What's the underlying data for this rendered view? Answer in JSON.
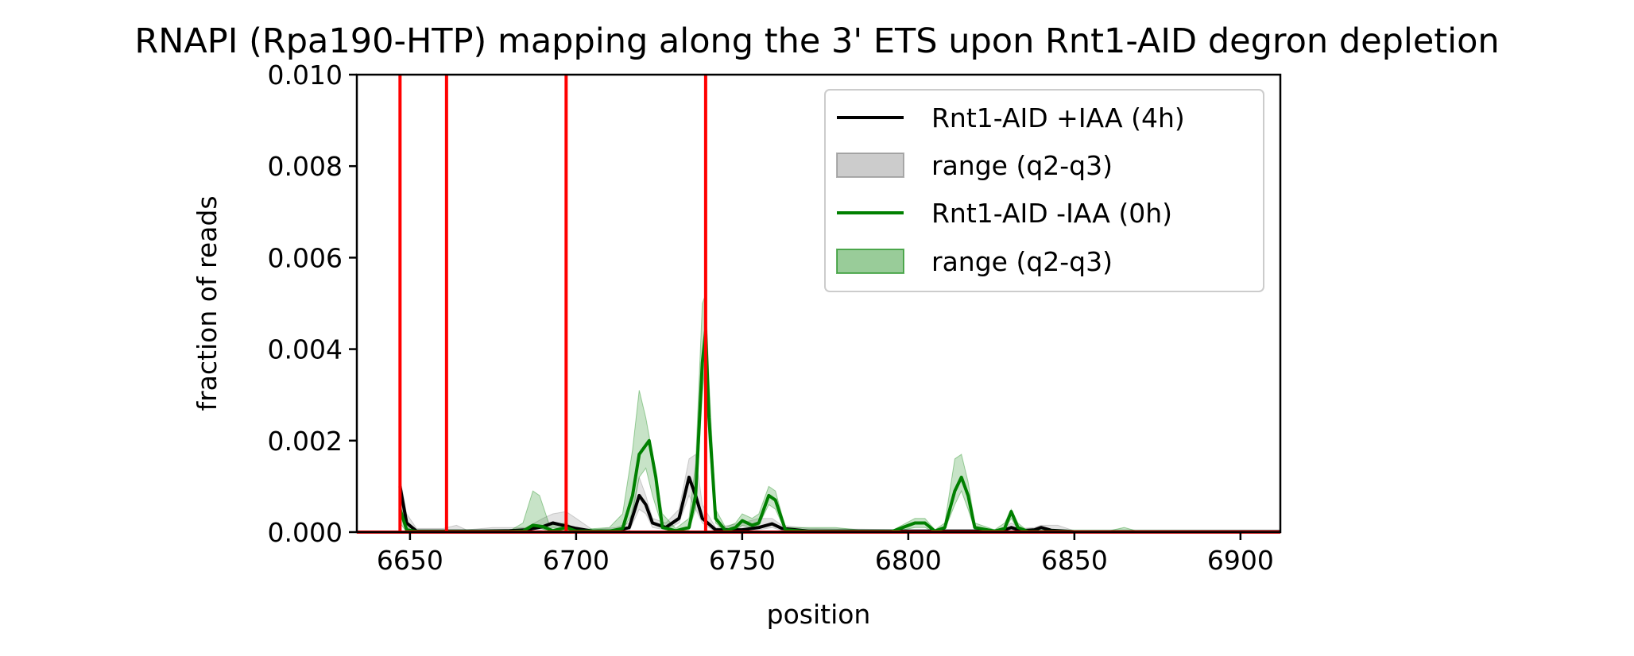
{
  "chart_data": {
    "type": "line",
    "title": "RNAPI (Rpa190-HTP) mapping along the 3' ETS upon Rnt1-AID degron depletion",
    "xlabel": "position",
    "ylabel": "fraction of reads",
    "xlim": [
      6634,
      6912
    ],
    "ylim": [
      0,
      0.01
    ],
    "x_ticks": [
      6650,
      6700,
      6750,
      6800,
      6850,
      6900
    ],
    "y_ticks": [
      0.0,
      0.002,
      0.004,
      0.006,
      0.008,
      0.01
    ],
    "x_tick_labels": [
      "6650",
      "6700",
      "6750",
      "6800",
      "6850",
      "6900"
    ],
    "y_tick_labels": [
      "0.000",
      "0.002",
      "0.004",
      "0.006",
      "0.008",
      "0.010"
    ],
    "grid": false,
    "legend_position": "top-right",
    "vertical_lines": {
      "color": "#ff0000",
      "x": [
        6647,
        6661,
        6697,
        6739
      ]
    },
    "horizontal_line": {
      "color": "#ff0000",
      "y": 0
    },
    "series": [
      {
        "name": "Rnt1-AID +IAA (4h)",
        "color": "#000000",
        "band_name": "range (q2-q3)",
        "band_color": "#808080",
        "points": [
          [
            6647,
            0.001
          ],
          [
            6649,
            0.0002
          ],
          [
            6652,
            2e-05
          ],
          [
            6670,
            2e-05
          ],
          [
            6680,
            3e-05
          ],
          [
            6685,
            5e-05
          ],
          [
            6690,
            0.00012
          ],
          [
            6693,
            0.0002
          ],
          [
            6696,
            0.00015
          ],
          [
            6700,
            8e-05
          ],
          [
            6705,
            2e-05
          ],
          [
            6712,
            2e-05
          ],
          [
            6716,
            0.0001
          ],
          [
            6719,
            0.0008
          ],
          [
            6721,
            0.0006
          ],
          [
            6723,
            0.0002
          ],
          [
            6727,
            0.0001
          ],
          [
            6731,
            0.0003
          ],
          [
            6734,
            0.0012
          ],
          [
            6736,
            0.0008
          ],
          [
            6738,
            0.0003
          ],
          [
            6742,
            5e-05
          ],
          [
            6750,
            5e-05
          ],
          [
            6755,
            0.0001
          ],
          [
            6759,
            0.00018
          ],
          [
            6762,
            8e-05
          ],
          [
            6770,
            2e-05
          ],
          [
            6800,
            2e-05
          ],
          [
            6810,
            2e-05
          ],
          [
            6820,
            2e-05
          ],
          [
            6828,
            2e-05
          ],
          [
            6831,
            0.0001
          ],
          [
            6834,
            3e-05
          ],
          [
            6838,
            5e-05
          ],
          [
            6840,
            0.0001
          ],
          [
            6843,
            4e-05
          ],
          [
            6850,
            1e-05
          ],
          [
            6912,
            1e-05
          ]
        ],
        "band": [
          [
            6647,
            0.0004,
            0.0012
          ],
          [
            6649,
            0.0001,
            0.0004
          ],
          [
            6652,
            0,
            8e-05
          ],
          [
            6660,
            0,
            8e-05
          ],
          [
            6664,
            0,
            0.00015
          ],
          [
            6667,
            0,
            5e-05
          ],
          [
            6675,
            0,
            0.0001
          ],
          [
            6685,
            0,
            0.0001
          ],
          [
            6690,
            5e-05,
            0.0003
          ],
          [
            6693,
            0.0001,
            0.0004
          ],
          [
            6697,
            5e-05,
            0.00045
          ],
          [
            6700,
            5e-05,
            0.0003
          ],
          [
            6705,
            0,
            5e-05
          ],
          [
            6712,
            0,
            0.0001
          ],
          [
            6716,
            2e-05,
            0.0002
          ],
          [
            6719,
            0.0005,
            0.0012
          ],
          [
            6721,
            0.0004,
            0.0008
          ],
          [
            6723,
            0.0001,
            0.0003
          ],
          [
            6727,
            5e-05,
            0.0002
          ],
          [
            6731,
            0.0002,
            0.0005
          ],
          [
            6734,
            0.0008,
            0.0016
          ],
          [
            6736,
            0.0005,
            0.0017
          ],
          [
            6738,
            0.0002,
            0.0006
          ],
          [
            6742,
            0,
            0.0001
          ],
          [
            6750,
            0,
            0.0002
          ],
          [
            6755,
            5e-05,
            0.0003
          ],
          [
            6759,
            0.0001,
            0.0003
          ],
          [
            6762,
            3e-05,
            0.00015
          ],
          [
            6770,
            0,
            8e-05
          ],
          [
            6800,
            0,
            5e-05
          ],
          [
            6815,
            0,
            5e-05
          ],
          [
            6828,
            0,
            5e-05
          ],
          [
            6831,
            5e-05,
            0.0002
          ],
          [
            6834,
            0,
            8e-05
          ],
          [
            6838,
            2e-05,
            0.0001
          ],
          [
            6840,
            5e-05,
            0.00015
          ],
          [
            6845,
            0,
            0.00015
          ],
          [
            6850,
            0,
            3e-05
          ],
          [
            6912,
            0,
            1e-05
          ]
        ]
      },
      {
        "name": "Rnt1-AID -IAA (0h)",
        "color": "#008000",
        "band_name": "range (q2-q3)",
        "band_color": "#008000",
        "points": [
          [
            6647,
            0.0005
          ],
          [
            6649,
            5e-05
          ],
          [
            6652,
            1e-05
          ],
          [
            6680,
            1e-05
          ],
          [
            6684,
            2e-05
          ],
          [
            6687,
            0.00015
          ],
          [
            6690,
            0.00012
          ],
          [
            6693,
            3e-05
          ],
          [
            6697,
            0.0001
          ],
          [
            6700,
            2e-05
          ],
          [
            6710,
            2e-05
          ],
          [
            6714,
            8e-05
          ],
          [
            6717,
            0.0008
          ],
          [
            6719,
            0.0017
          ],
          [
            6722,
            0.002
          ],
          [
            6724,
            0.0012
          ],
          [
            6726,
            0.0001
          ],
          [
            6730,
            3e-05
          ],
          [
            6734,
            0.0001
          ],
          [
            6736,
            0.0008
          ],
          [
            6738,
            0.0037
          ],
          [
            6739,
            0.0044
          ],
          [
            6740,
            0.0025
          ],
          [
            6742,
            0.0003
          ],
          [
            6745,
            3e-05
          ],
          [
            6748,
            0.0001
          ],
          [
            6750,
            0.00025
          ],
          [
            6753,
            0.00015
          ],
          [
            6755,
            0.0002
          ],
          [
            6758,
            0.0008
          ],
          [
            6760,
            0.0007
          ],
          [
            6763,
            5e-05
          ],
          [
            6770,
            1e-05
          ],
          [
            6795,
            1e-05
          ],
          [
            6802,
            0.0002
          ],
          [
            6805,
            0.0002
          ],
          [
            6808,
            2e-05
          ],
          [
            6811,
            0.0001
          ],
          [
            6814,
            0.0009
          ],
          [
            6816,
            0.0012
          ],
          [
            6818,
            0.0008
          ],
          [
            6820,
            0.0001
          ],
          [
            6826,
            2e-05
          ],
          [
            6829,
            8e-05
          ],
          [
            6831,
            0.00045
          ],
          [
            6833,
            0.0001
          ],
          [
            6836,
            1e-05
          ],
          [
            6912,
            0
          ]
        ],
        "band": [
          [
            6647,
            0.0002,
            0.0008
          ],
          [
            6649,
            0,
            0.0002
          ],
          [
            6652,
            0,
            3e-05
          ],
          [
            6680,
            0,
            3e-05
          ],
          [
            6684,
            0,
            0.0002
          ],
          [
            6687,
            0.0001,
            0.0009
          ],
          [
            6689,
            0.0001,
            0.0008
          ],
          [
            6692,
            0,
            0.00015
          ],
          [
            6697,
            5e-05,
            0.0002
          ],
          [
            6700,
            0,
            5e-05
          ],
          [
            6710,
            0,
            0.0001
          ],
          [
            6714,
            5e-05,
            0.0004
          ],
          [
            6717,
            0.0004,
            0.0018
          ],
          [
            6719,
            0.0012,
            0.0031
          ],
          [
            6721,
            0.0014,
            0.0025
          ],
          [
            6723,
            0.0008,
            0.0017
          ],
          [
            6726,
            0.0001,
            0.0004
          ],
          [
            6730,
            0,
            8e-05
          ],
          [
            6734,
            5e-05,
            0.0003
          ],
          [
            6736,
            0.0005,
            0.0015
          ],
          [
            6738,
            0.003,
            0.005
          ],
          [
            6739,
            0.0038,
            0.0052
          ],
          [
            6740,
            0.002,
            0.0033
          ],
          [
            6742,
            0.0002,
            0.0005
          ],
          [
            6745,
            0,
            0.0001
          ],
          [
            6748,
            5e-05,
            0.0002
          ],
          [
            6750,
            0.00015,
            0.0004
          ],
          [
            6753,
            0.0001,
            0.0003
          ],
          [
            6755,
            0.00015,
            0.0004
          ],
          [
            6758,
            0.0006,
            0.001
          ],
          [
            6760,
            0.0005,
            0.0009
          ],
          [
            6763,
            2e-05,
            0.0001
          ],
          [
            6770,
            0,
            0.0001
          ],
          [
            6778,
            0,
            0.0001
          ],
          [
            6785,
            0,
            5e-05
          ],
          [
            6795,
            0,
            3e-05
          ],
          [
            6802,
            0.0001,
            0.0003
          ],
          [
            6805,
            0.0001,
            0.0003
          ],
          [
            6808,
            0,
            5e-05
          ],
          [
            6811,
            5e-05,
            0.0002
          ],
          [
            6814,
            0.0006,
            0.0016
          ],
          [
            6816,
            0.0009,
            0.0017
          ],
          [
            6818,
            0.0005,
            0.0011
          ],
          [
            6820,
            5e-05,
            0.0002
          ],
          [
            6826,
            0,
            5e-05
          ],
          [
            6829,
            5e-05,
            0.0002
          ],
          [
            6831,
            0.0003,
            0.0005
          ],
          [
            6833,
            5e-05,
            0.0002
          ],
          [
            6836,
            0,
            2e-05
          ],
          [
            6860,
            0,
            2e-05
          ],
          [
            6865,
            0,
            0.0001
          ],
          [
            6869,
            0,
            2e-05
          ],
          [
            6912,
            0,
            0
          ]
        ]
      }
    ]
  }
}
